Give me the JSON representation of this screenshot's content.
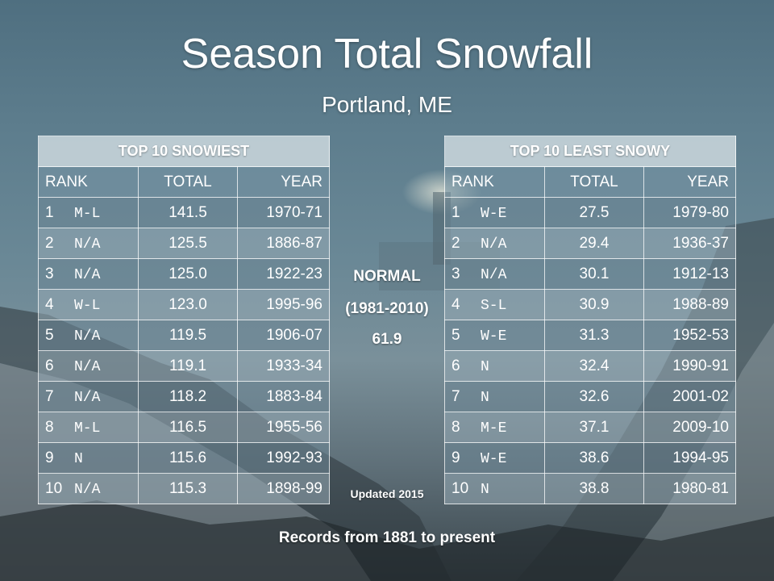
{
  "title": "Season Total Snowfall",
  "subtitle": "Portland, ME",
  "snowiest": {
    "heading": "TOP 10 SNOWIEST",
    "columns": [
      "RANK",
      "TOTAL",
      "YEAR"
    ],
    "rows": [
      {
        "rank": "1",
        "code": "M-L",
        "total": "141.5",
        "year": "1970-71"
      },
      {
        "rank": "2",
        "code": "N/A",
        "total": "125.5",
        "year": "1886-87"
      },
      {
        "rank": "3",
        "code": "N/A",
        "total": "125.0",
        "year": "1922-23"
      },
      {
        "rank": "4",
        "code": "W-L",
        "total": "123.0",
        "year": "1995-96"
      },
      {
        "rank": "5",
        "code": "N/A",
        "total": "119.5",
        "year": "1906-07"
      },
      {
        "rank": "6",
        "code": "N/A",
        "total": "119.1",
        "year": "1933-34"
      },
      {
        "rank": "7",
        "code": "N/A",
        "total": "118.2",
        "year": "1883-84"
      },
      {
        "rank": "8",
        "code": "M-L",
        "total": "116.5",
        "year": "1955-56"
      },
      {
        "rank": "9",
        "code": "N",
        "total": "115.6",
        "year": "1992-93"
      },
      {
        "rank": "10",
        "code": "N/A",
        "total": "115.3",
        "year": "1898-99"
      }
    ]
  },
  "least": {
    "heading": "TOP 10 LEAST SNOWY",
    "columns": [
      "RANK",
      "TOTAL",
      "YEAR"
    ],
    "rows": [
      {
        "rank": "1",
        "code": "W-E",
        "total": "27.5",
        "year": "1979-80"
      },
      {
        "rank": "2",
        "code": "N/A",
        "total": "29.4",
        "year": "1936-37"
      },
      {
        "rank": "3",
        "code": "N/A",
        "total": "30.1",
        "year": "1912-13"
      },
      {
        "rank": "4",
        "code": "S-L",
        "total": "30.9",
        "year": "1988-89"
      },
      {
        "rank": "5",
        "code": "W-E",
        "total": "31.3",
        "year": "1952-53"
      },
      {
        "rank": "6",
        "code": "N",
        "total": "32.4",
        "year": "1990-91"
      },
      {
        "rank": "7",
        "code": "N",
        "total": "32.6",
        "year": "2001-02"
      },
      {
        "rank": "8",
        "code": "M-E",
        "total": "37.1",
        "year": "2009-10"
      },
      {
        "rank": "9",
        "code": "W-E",
        "total": "38.6",
        "year": "1994-95"
      },
      {
        "rank": "10",
        "code": "N",
        "total": "38.8",
        "year": "1980-81"
      }
    ]
  },
  "normal": {
    "label": "NORMAL",
    "period": "(1981-2010)",
    "value": "61.9"
  },
  "updated": "Updated 2015",
  "footer": "Records from 1881 to present"
}
